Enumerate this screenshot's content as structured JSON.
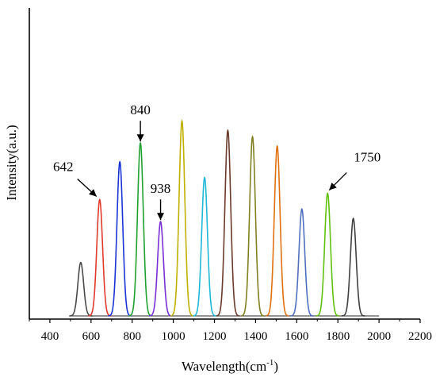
{
  "chart_data": {
    "type": "line",
    "title": "",
    "xlabel": "Wavelength(cm",
    "xlabel_superscript": "-1",
    "xlabel_suffix": ")",
    "ylabel": "Intensity(a.u.)",
    "xlim": [
      300,
      2200
    ],
    "ylim": [
      0,
      1.0
    ],
    "x_ticks": [
      400,
      600,
      800,
      1000,
      1200,
      1400,
      1600,
      1800,
      2000,
      2200
    ],
    "y_ticks_visible": false,
    "grid": false,
    "legend": "none",
    "baseline": {
      "x_start": 500,
      "x_end": 2000
    },
    "series": [
      {
        "center": 550,
        "height": 0.17,
        "width": 14,
        "color": "#4a4a4a"
      },
      {
        "center": 642,
        "height": 0.37,
        "width": 14,
        "color": "#e03a2c"
      },
      {
        "center": 740,
        "height": 0.49,
        "width": 14,
        "color": "#1a34d6"
      },
      {
        "center": 840,
        "height": 0.55,
        "width": 14,
        "color": "#20a030"
      },
      {
        "center": 938,
        "height": 0.3,
        "width": 14,
        "color": "#7a2fd6"
      },
      {
        "center": 1042,
        "height": 0.62,
        "width": 14,
        "color": "#c0b000"
      },
      {
        "center": 1152,
        "height": 0.44,
        "width": 14,
        "color": "#20b8d8"
      },
      {
        "center": 1265,
        "height": 0.59,
        "width": 14,
        "color": "#6a3a2a"
      },
      {
        "center": 1385,
        "height": 0.57,
        "width": 14,
        "color": "#808020"
      },
      {
        "center": 1505,
        "height": 0.54,
        "width": 14,
        "color": "#e07010"
      },
      {
        "center": 1625,
        "height": 0.34,
        "width": 14,
        "color": "#5070c0"
      },
      {
        "center": 1750,
        "height": 0.39,
        "width": 14,
        "color": "#60c010"
      },
      {
        "center": 1875,
        "height": 0.31,
        "width": 14,
        "color": "#404040"
      }
    ],
    "annotations": [
      {
        "text": "642",
        "target_x": 642,
        "arrow": "down-right"
      },
      {
        "text": "840",
        "target_x": 840,
        "arrow": "down"
      },
      {
        "text": "938",
        "target_x": 938,
        "arrow": "down"
      },
      {
        "text": "1750",
        "target_x": 1750,
        "arrow": "down-left"
      }
    ]
  }
}
